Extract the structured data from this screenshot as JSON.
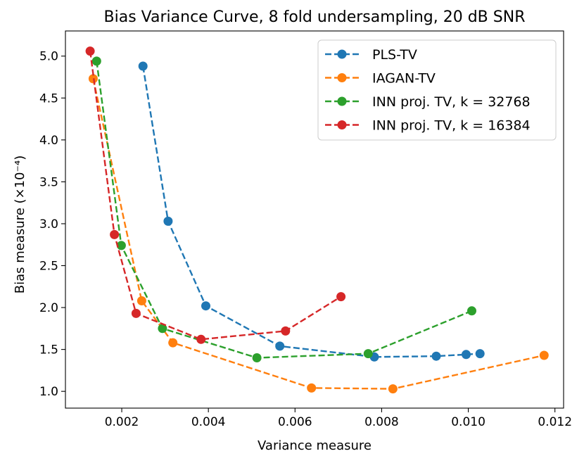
{
  "chart_data": {
    "type": "line",
    "title": "Bias Variance Curve, 8 fold undersampling, 20 dB SNR",
    "xlabel": "Variance measure",
    "ylabel": "Bias measure (×10⁻⁴)",
    "xlim": [
      0.0007,
      0.0122
    ],
    "ylim": [
      0.8,
      5.3
    ],
    "xticks": [
      0.002,
      0.004,
      0.006,
      0.008,
      0.01,
      0.012
    ],
    "xtick_labels": [
      "0.002",
      "0.004",
      "0.006",
      "0.008",
      "0.010",
      "0.012"
    ],
    "yticks": [
      1.0,
      1.5,
      2.0,
      2.5,
      3.0,
      3.5,
      4.0,
      4.5,
      5.0
    ],
    "ytick_labels": [
      "1.0",
      "1.5",
      "2.0",
      "2.5",
      "3.0",
      "3.5",
      "4.0",
      "4.5",
      "5.0"
    ],
    "legend_position": "top-right",
    "grid": false,
    "series": [
      {
        "name": "PLS-TV",
        "color": "#1f77b4",
        "x": [
          0.00249,
          0.00307,
          0.00394,
          0.00565,
          0.00783,
          0.00926,
          0.00995,
          0.01027
        ],
        "y": [
          4.88,
          3.03,
          2.02,
          1.54,
          1.41,
          1.42,
          1.44,
          1.45
        ]
      },
      {
        "name": "IAGAN-TV",
        "color": "#ff7f0e",
        "x": [
          0.00134,
          0.00246,
          0.00318,
          0.00638,
          0.00826,
          0.01175
        ],
        "y": [
          4.73,
          2.08,
          1.58,
          1.04,
          1.03,
          1.43
        ]
      },
      {
        "name": "INN proj. TV, k = 32768",
        "color": "#2ca02c",
        "x": [
          0.00142,
          0.00199,
          0.00294,
          0.00512,
          0.00769,
          0.01008
        ],
        "y": [
          4.94,
          2.74,
          1.75,
          1.4,
          1.45,
          1.96
        ]
      },
      {
        "name": "INN proj. TV, k = 16384",
        "color": "#d62728",
        "x": [
          0.00127,
          0.00183,
          0.00233,
          0.00383,
          0.00578,
          0.00706
        ],
        "y": [
          5.06,
          2.87,
          1.93,
          1.62,
          1.72,
          2.13
        ]
      }
    ]
  }
}
